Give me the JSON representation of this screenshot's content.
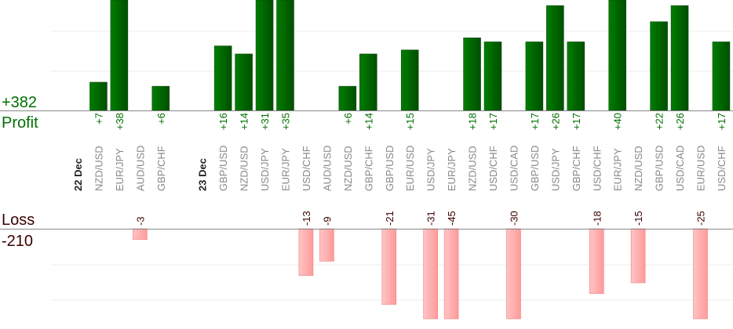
{
  "chart_data": {
    "type": "bar",
    "profit_label": "Profit",
    "profit_total": "+382",
    "loss_label": "Loss",
    "loss_total": "-210",
    "colors": {
      "profit": "#006400",
      "profit_text": "#007000",
      "loss": "#ff9f9f",
      "loss_text": "#3a0000",
      "category": "#888888"
    },
    "columns": [
      {
        "label": "22 Dec",
        "date": true
      },
      {
        "label": "NZD/USD",
        "value": 7
      },
      {
        "label": "EUR/JPY",
        "value": 38
      },
      {
        "label": "AUD/USD",
        "value": -3
      },
      {
        "label": "GBP/CHF",
        "value": 6
      },
      {
        "label": "",
        "blank": true
      },
      {
        "label": "23 Dec",
        "date": true
      },
      {
        "label": "GBP/USD",
        "value": 16
      },
      {
        "label": "NZD/USD",
        "value": 14
      },
      {
        "label": "USD/JPY",
        "value": 31
      },
      {
        "label": "EUR/JPY",
        "value": 35
      },
      {
        "label": "USD/CHF",
        "value": -13
      },
      {
        "label": "AUD/USD",
        "value": -9
      },
      {
        "label": "NZD/USD",
        "value": 6
      },
      {
        "label": "GBP/CHF",
        "value": 14
      },
      {
        "label": "GBP/USD",
        "value": -21
      },
      {
        "label": "EUR/USD",
        "value": 15
      },
      {
        "label": "USD/JPY",
        "value": -31
      },
      {
        "label": "EUR/JPY",
        "value": -45
      },
      {
        "label": "NZD/USD",
        "value": 18
      },
      {
        "label": "USD/CHF",
        "value": 17
      },
      {
        "label": "USD/CAD",
        "value": -30
      },
      {
        "label": "GBP/USD",
        "value": 17
      },
      {
        "label": "USD/JPY",
        "value": 26
      },
      {
        "label": "GBP/CHF",
        "value": 17
      },
      {
        "label": "USD/CHF",
        "value": -18
      },
      {
        "label": "EUR/JPY",
        "value": 40
      },
      {
        "label": "NZD/USD",
        "value": -15
      },
      {
        "label": "GBP/USD",
        "value": 22
      },
      {
        "label": "USD/CAD",
        "value": 26
      },
      {
        "label": "EUR/USD",
        "value": -25
      },
      {
        "label": "USD/CHF",
        "value": 17
      }
    ]
  }
}
